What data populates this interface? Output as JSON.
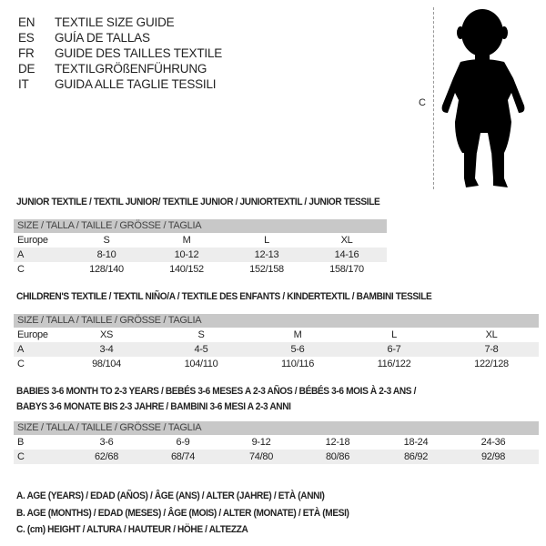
{
  "languages": [
    {
      "code": "EN",
      "title": "TEXTILE SIZE GUIDE"
    },
    {
      "code": "ES",
      "title": "GUÍA DE TALLAS"
    },
    {
      "code": "FR",
      "title": "GUIDE DES TAILLES TEXTILE"
    },
    {
      "code": "DE",
      "title": "TEXTILGRÖßENFÜHRUNG"
    },
    {
      "code": "IT",
      "title": "GUIDA ALLE TAGLIE TESSILI"
    }
  ],
  "figure": {
    "height_label": "C"
  },
  "junior": {
    "title": "JUNIOR TEXTILE / TEXTIL JUNIOR/ TEXTILE JUNIOR / JUNIORTEXTIL / JUNIOR TESSILE",
    "header": "SIZE / TALLA / TAILLE / GRÖSSE / TAGLIA",
    "rows": [
      {
        "label": "Europe",
        "cells": [
          "S",
          "M",
          "L",
          "XL"
        ]
      },
      {
        "label": "A",
        "cells": [
          "8-10",
          "10-12",
          "12-13",
          "14-16"
        ]
      },
      {
        "label": "C",
        "cells": [
          "128/140",
          "140/152",
          "152/158",
          "158/170"
        ]
      }
    ]
  },
  "children": {
    "title": "CHILDREN'S TEXTILE / TEXTIL NIÑO/A / TEXTILE DES ENFANTS / KINDERTEXTIL / BAMBINI TESSILE",
    "header": "SIZE / TALLA / TAILLE / GRÖSSE / TAGLIA",
    "rows": [
      {
        "label": "Europe",
        "cells": [
          "XS",
          "S",
          "M",
          "L",
          "XL"
        ]
      },
      {
        "label": "A",
        "cells": [
          "3-4",
          "4-5",
          "5-6",
          "6-7",
          "7-8"
        ]
      },
      {
        "label": "C",
        "cells": [
          "98/104",
          "104/110",
          "110/116",
          "116/122",
          "122/128"
        ]
      }
    ]
  },
  "babies": {
    "title_line1": "BABIES 3-6 MONTH TO 2-3 YEARS / BEBÉS 3-6 MESES A 2-3 AÑOS / BÉBÉS 3-6 MOIS À 2-3 ANS /",
    "title_line2": "BABYS 3-6 MONATE BIS 2-3 JAHRE / BAMBINI 3-6 MESI A 2-3 ANNI",
    "header": "SIZE / TALLA / TAILLE / GRÖSSE / TAGLIA",
    "rows": [
      {
        "label": "B",
        "cells": [
          "3-6",
          "6-9",
          "9-12",
          "12-18",
          "18-24",
          "24-36"
        ]
      },
      {
        "label": "C",
        "cells": [
          "62/68",
          "68/74",
          "74/80",
          "80/86",
          "86/92",
          "92/98"
        ]
      }
    ]
  },
  "legend": [
    "A. AGE (YEARS) / EDAD (AÑOS) / ÂGE (ANS) / ALTER (JAHRE) / ETÀ (ANNI)",
    "B. AGE (MONTHS) / EDAD (MESES) / ÂGE (MOIS) / ALTER (MONATE) / ETÀ (MESI)",
    "C. (cm) HEIGHT / ALTURA / HAUTEUR / HÖHE / ALTEZZA"
  ]
}
